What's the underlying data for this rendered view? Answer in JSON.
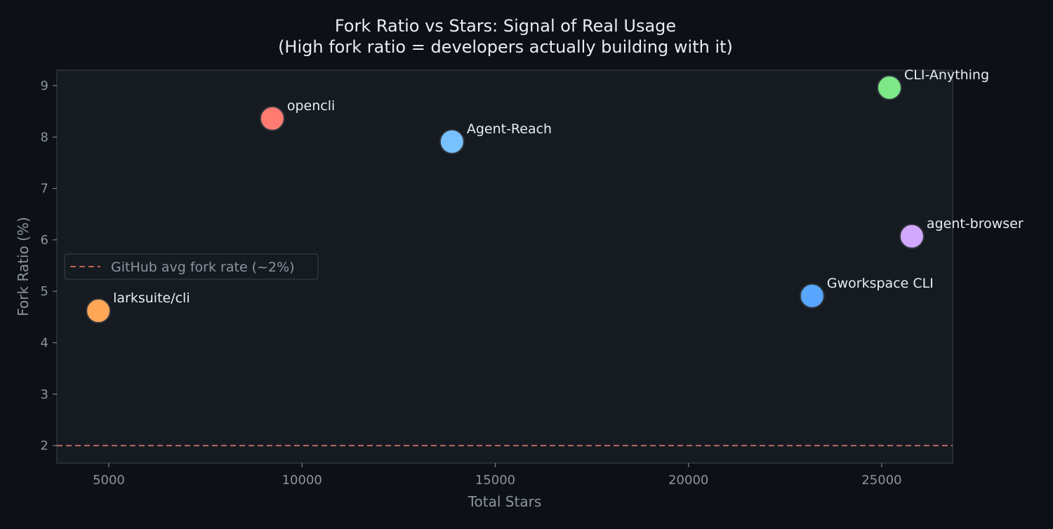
{
  "chart_data": {
    "type": "scatter",
    "title": "Fork Ratio vs Stars: Signal of Real Usage",
    "subtitle": "(High fork ratio = developers actually building with it)",
    "xlabel": "Total Stars",
    "ylabel": "Fork Ratio (%)",
    "xlim": [
      3656,
      26835
    ],
    "ylim": [
      1.66,
      9.3
    ],
    "xticks": [
      5000,
      10000,
      15000,
      20000,
      25000
    ],
    "yticks": [
      2,
      3,
      4,
      5,
      6,
      7,
      8,
      9
    ],
    "grid": false,
    "legend": {
      "placement": "center-left",
      "entries": [
        "GitHub avg fork rate (~2%)"
      ]
    },
    "reference_line": {
      "y": 2,
      "label": "GitHub avg fork rate (~2%)",
      "color": "#f0816a",
      "style": "dashed"
    },
    "points": [
      {
        "label": "larksuite/cli",
        "x": 4730,
        "y": 4.62,
        "color": "#ffa657"
      },
      {
        "label": "opencli",
        "x": 9230,
        "y": 8.36,
        "color": "#ff7b72"
      },
      {
        "label": "Agent-Reach",
        "x": 13880,
        "y": 7.91,
        "color": "#79c0ff"
      },
      {
        "label": "Gworkspace CLI",
        "x": 23200,
        "y": 4.91,
        "color": "#58a6ff"
      },
      {
        "label": "CLI-Anything",
        "x": 25200,
        "y": 8.96,
        "color": "#7ee787"
      },
      {
        "label": "agent-browser",
        "x": 25780,
        "y": 6.07,
        "color": "#d2a8ff"
      }
    ]
  },
  "colors": {
    "background": "#0d1117",
    "plot_background": "#161b22",
    "text": "#e6edf3",
    "muted": "#8b949e",
    "spine": "#30363d"
  }
}
